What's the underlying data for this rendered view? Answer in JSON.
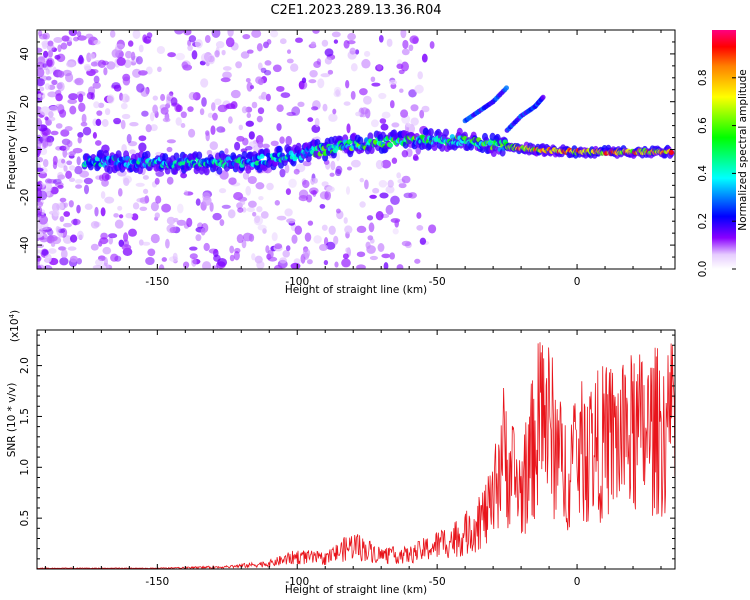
{
  "figure": {
    "title": "C2E1.2023.289.13.36.R04"
  },
  "chart_data": [
    {
      "type": "heatmap",
      "xlabel": "Height of straight line (km)",
      "ylabel": "Frequency (Hz)",
      "xlim": [
        -193,
        35
      ],
      "ylim": [
        -50,
        50
      ],
      "xticks": [
        -150,
        -100,
        -50,
        0
      ],
      "yticks": [
        -40,
        -20,
        0,
        20,
        40
      ],
      "colorbar": {
        "label": "Normalized spectral amplitude",
        "range": [
          0.0,
          1.0
        ],
        "ticks": [
          0.0,
          0.2,
          0.4,
          0.6,
          0.8
        ],
        "colors": [
          "#ffffff",
          "#8a00ff",
          "#0000ff",
          "#00ffff",
          "#00ff00",
          "#ffff00",
          "#ff7f00",
          "#ff0000",
          "#ff0080"
        ]
      },
      "trace_center_hz": [
        {
          "x": -170,
          "y": -5
        },
        {
          "x": -140,
          "y": -6
        },
        {
          "x": -115,
          "y": -5
        },
        {
          "x": -100,
          "y": -2
        },
        {
          "x": -80,
          "y": 2
        },
        {
          "x": -60,
          "y": 4
        },
        {
          "x": -40,
          "y": 4
        },
        {
          "x": -30,
          "y": 2
        },
        {
          "x": -15,
          "y": 0
        },
        {
          "x": 0,
          "y": -1
        },
        {
          "x": 20,
          "y": -1
        },
        {
          "x": 35,
          "y": -1
        }
      ],
      "secondary_branches_hz": [
        {
          "x": [
            -40,
            -35,
            -30,
            -25
          ],
          "y": [
            12,
            16,
            20,
            26
          ]
        },
        {
          "x": [
            -25,
            -20,
            -15,
            -12
          ],
          "y": [
            8,
            14,
            18,
            22
          ]
        }
      ]
    },
    {
      "type": "line",
      "xlabel": "Height of straight line (km)",
      "ylabel": "SNR (10 * v/v)",
      "ylabel_scale": "(x10",
      "ylabel_scale_exp": "4",
      "scale_factor": 10000,
      "xlim": [
        -193,
        35
      ],
      "ylim": [
        0.0,
        2.35
      ],
      "xticks": [
        -150,
        -100,
        -50,
        0
      ],
      "yticks": [
        0.5,
        1.0,
        1.5,
        2.0
      ],
      "line_color": "#e8141b",
      "envelope": [
        {
          "x": -193,
          "y": 0.01
        },
        {
          "x": -150,
          "y": 0.01
        },
        {
          "x": -125,
          "y": 0.03
        },
        {
          "x": -110,
          "y": 0.08
        },
        {
          "x": -100,
          "y": 0.18
        },
        {
          "x": -90,
          "y": 0.15
        },
        {
          "x": -80,
          "y": 0.35
        },
        {
          "x": -70,
          "y": 0.2
        },
        {
          "x": -60,
          "y": 0.2
        },
        {
          "x": -50,
          "y": 0.35
        },
        {
          "x": -40,
          "y": 0.5
        },
        {
          "x": -30,
          "y": 0.9
        },
        {
          "x": -27,
          "y": 1.75
        },
        {
          "x": -20,
          "y": 1.1
        },
        {
          "x": -12,
          "y": 2.35
        },
        {
          "x": -5,
          "y": 1.4
        },
        {
          "x": 0,
          "y": 1.65
        },
        {
          "x": 10,
          "y": 1.85
        },
        {
          "x": 20,
          "y": 1.95
        },
        {
          "x": 35,
          "y": 2.05
        }
      ]
    }
  ]
}
